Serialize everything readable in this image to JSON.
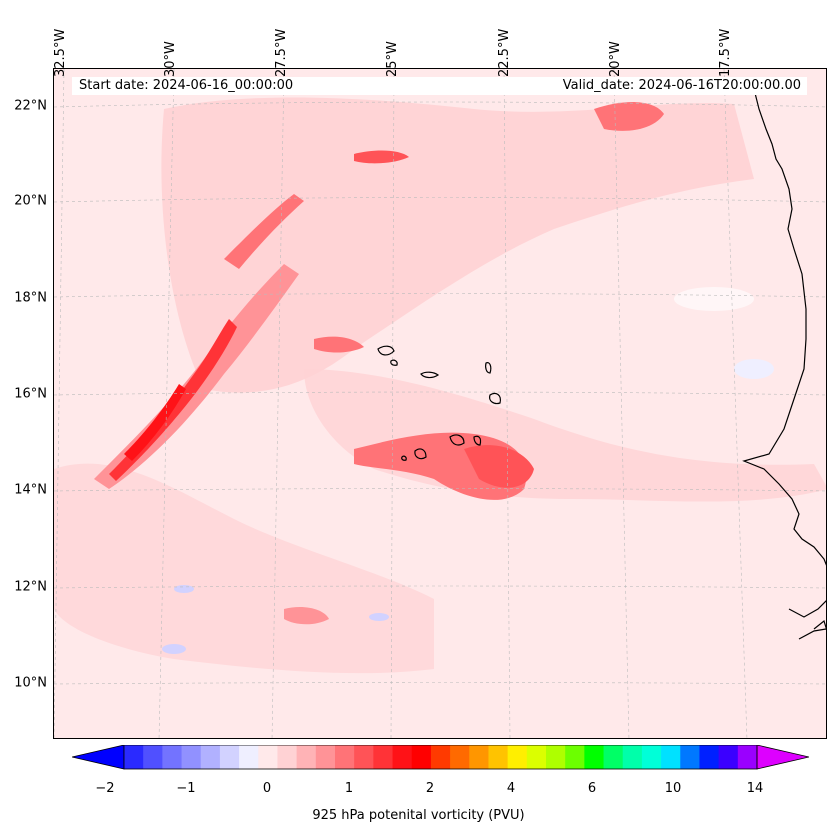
{
  "header": {
    "start_date": "Start date: 2024-06-16_00:00:00",
    "valid_date": "Valid_date: 2024-06-16T20:00:00.00"
  },
  "axes": {
    "lon_labels": [
      "32.5°W",
      "30°W",
      "27.5°W",
      "25°W",
      "22.5°W",
      "20°W",
      "17.5°W"
    ],
    "lat_labels": [
      "22°N",
      "20°N",
      "18°N",
      "16°N",
      "14°N",
      "12°N",
      "10°N"
    ]
  },
  "colorbar": {
    "ticks": [
      "−2",
      "−1",
      "0",
      "1",
      "2",
      "4",
      "6",
      "10",
      "14"
    ],
    "label": "925 hPa potenital vorticity (PVU)",
    "colors": [
      "#0000ff",
      "#2a2aff",
      "#5050ff",
      "#7373ff",
      "#9191ff",
      "#b1b1ff",
      "#d2d2ff",
      "#efefff",
      "#ffe9ea",
      "#ffd2d4",
      "#ffb3b6",
      "#ff9397",
      "#ff7377",
      "#ff5357",
      "#ff3337",
      "#ff1217",
      "#ff0000",
      "#ff3a00",
      "#ff6a00",
      "#ff9600",
      "#ffc300",
      "#ffef00",
      "#dbff00",
      "#aeff00",
      "#6cff00",
      "#00ff00",
      "#00ff66",
      "#00ffaa",
      "#00ffd8",
      "#00e1ff",
      "#0078ff",
      "#0020ff",
      "#3b00ff",
      "#9a00ff",
      "#dd00ff"
    ]
  }
}
